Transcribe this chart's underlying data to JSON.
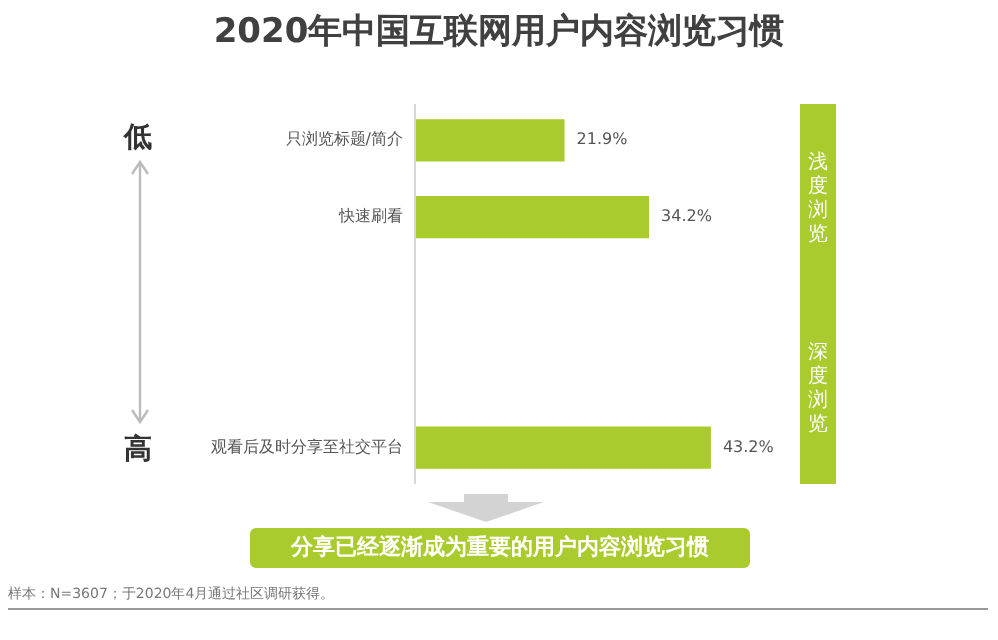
{
  "chart_data": {
    "type": "bar",
    "orientation": "horizontal",
    "title": "2020年中国互联网用户内容浏览习惯",
    "categories": [
      "只浏览标题/简介",
      "快速刷看",
      null,
      null,
      "观看后及时分享至社交平台"
    ],
    "values": [
      21.9,
      34.2,
      null,
      null,
      43.2
    ],
    "color": "#a9cb2e",
    "value_labels": [
      "21.9%",
      "34.2%",
      null,
      null,
      "43.2%"
    ],
    "annotations": [
      "低",
      "高",
      "浅度浏览",
      "深度浏览",
      "分享已经逐渐成为重要的用户内容浏览习惯",
      "样本：N=3607；于2020年4月通过社区调研获得。"
    ]
  }
}
